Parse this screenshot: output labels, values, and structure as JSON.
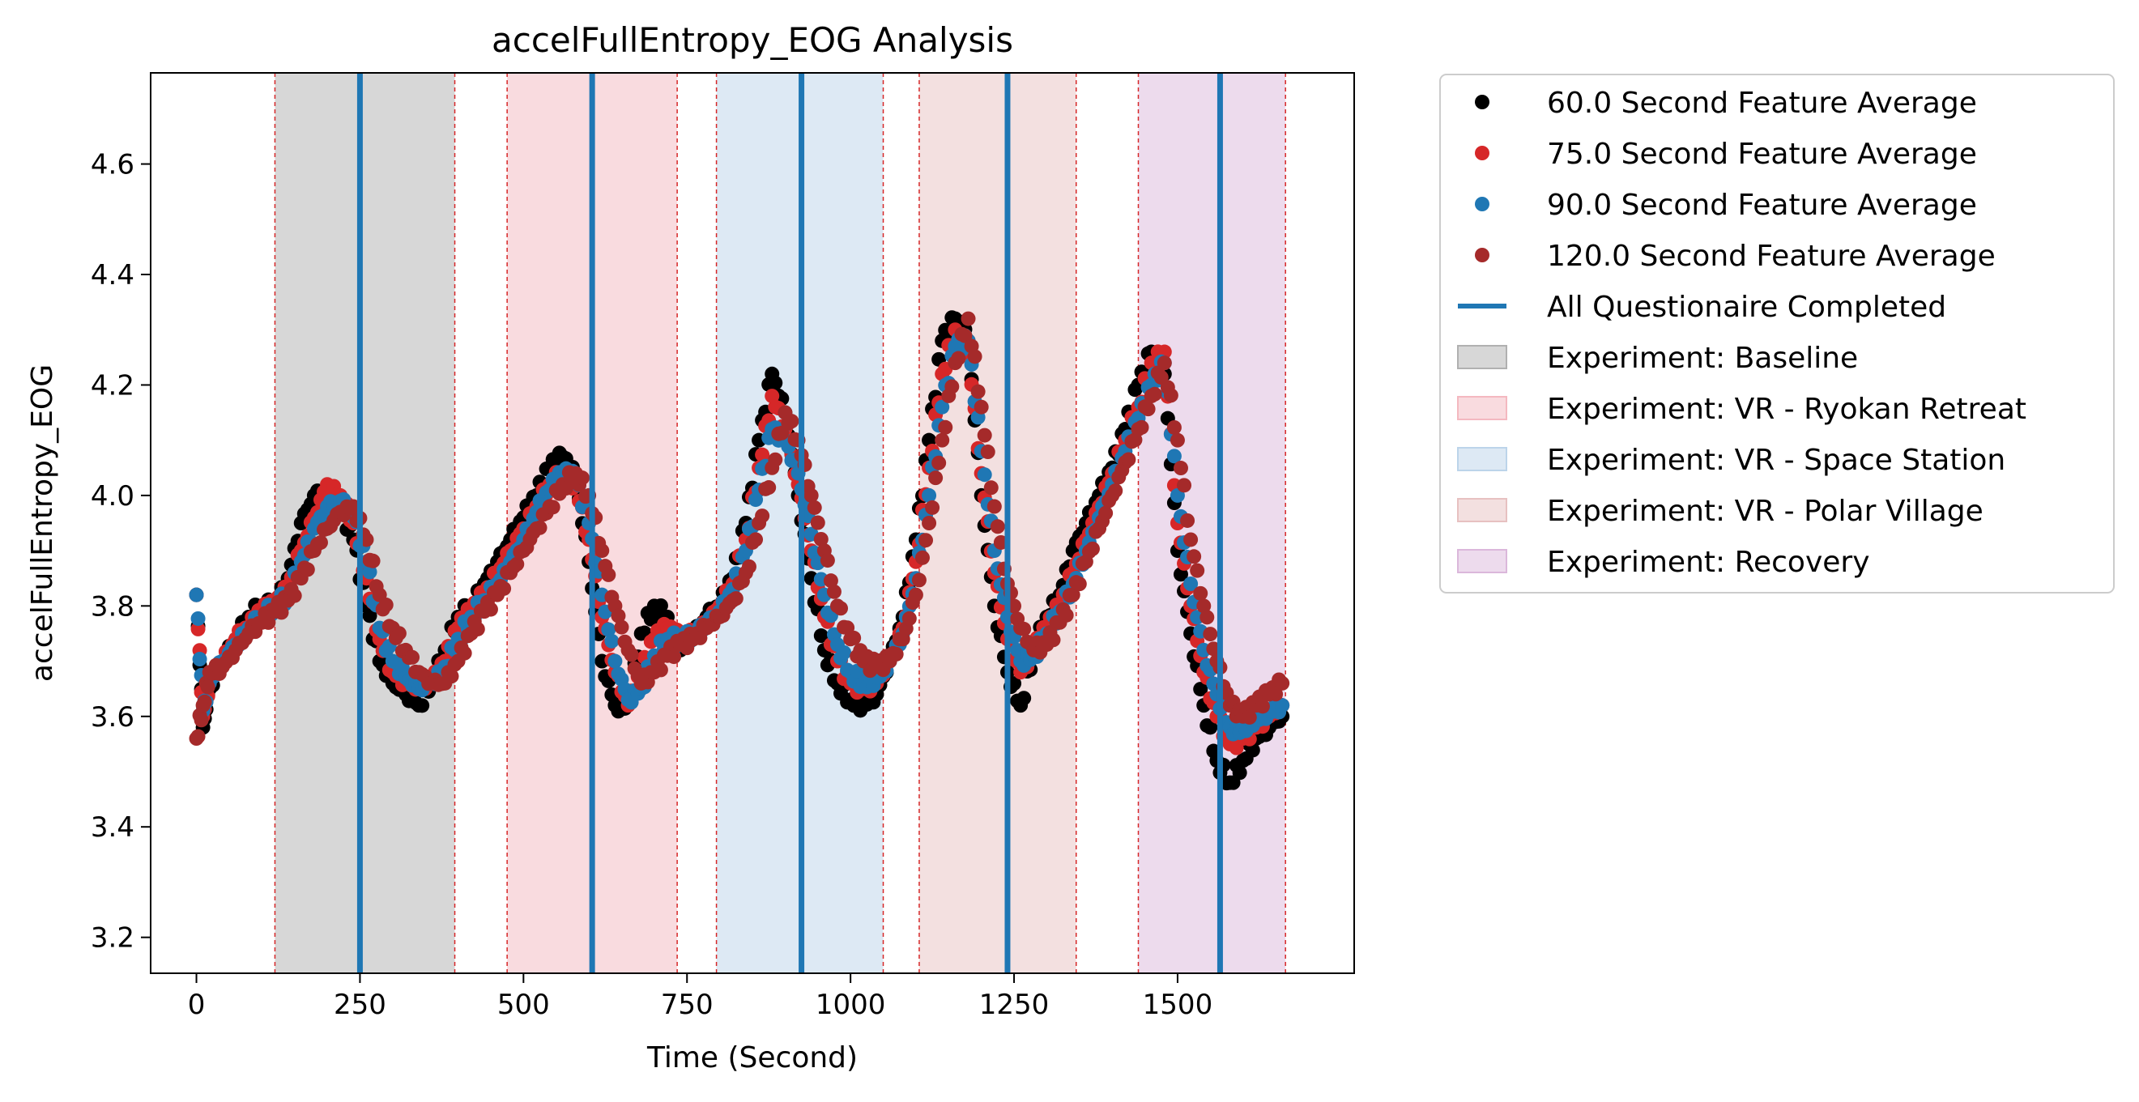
{
  "chart_data": {
    "type": "scatter",
    "title": "accelFullEntropy_EOG Analysis",
    "xlabel": "Time (Second)",
    "ylabel": "accelFullEntropy_EOG",
    "xlim": [
      -70,
      1770
    ],
    "ylim": [
      3.135,
      4.765
    ],
    "xticks": [
      0,
      250,
      500,
      750,
      1000,
      1250,
      1500
    ],
    "yticks": [
      3.2,
      3.4,
      3.6,
      3.8,
      4.0,
      4.2,
      4.4,
      4.6
    ],
    "legend_position": "outside-right-top",
    "grid": false,
    "series": [
      {
        "name": "60.0 Second Feature Average",
        "color": "#000000",
        "x": [
          0,
          10,
          20,
          40,
          60,
          80,
          100,
          120,
          140,
          160,
          180,
          200,
          220,
          240,
          260,
          280,
          300,
          320,
          340,
          360,
          380,
          400,
          420,
          440,
          460,
          480,
          500,
          520,
          540,
          560,
          580,
          600,
          620,
          640,
          660,
          680,
          700,
          720,
          740,
          760,
          780,
          800,
          820,
          840,
          860,
          880,
          900,
          920,
          940,
          960,
          980,
          1000,
          1020,
          1040,
          1060,
          1080,
          1100,
          1120,
          1140,
          1160,
          1180,
          1200,
          1220,
          1240,
          1260,
          1280,
          1300,
          1320,
          1340,
          1360,
          1380,
          1400,
          1420,
          1440,
          1460,
          1480,
          1500,
          1520,
          1540,
          1560,
          1580,
          1600,
          1620,
          1640,
          1660
        ],
        "y": [
          3.82,
          3.58,
          3.65,
          3.7,
          3.74,
          3.78,
          3.8,
          3.8,
          3.85,
          3.95,
          4.0,
          4.0,
          3.98,
          3.92,
          3.8,
          3.7,
          3.66,
          3.64,
          3.62,
          3.66,
          3.72,
          3.78,
          3.8,
          3.84,
          3.88,
          3.92,
          3.96,
          4.0,
          4.05,
          4.07,
          4.03,
          3.88,
          3.7,
          3.62,
          3.62,
          3.75,
          3.8,
          3.78,
          3.72,
          3.75,
          3.78,
          3.8,
          3.85,
          3.95,
          4.1,
          4.22,
          4.15,
          4.0,
          3.85,
          3.72,
          3.66,
          3.63,
          3.62,
          3.64,
          3.7,
          3.78,
          3.92,
          4.1,
          4.28,
          4.32,
          4.28,
          4.0,
          3.8,
          3.68,
          3.62,
          3.72,
          3.78,
          3.82,
          3.9,
          3.95,
          4.0,
          4.05,
          4.12,
          4.2,
          4.26,
          4.22,
          3.9,
          3.75,
          3.62,
          3.52,
          3.48,
          3.52,
          3.56,
          3.58,
          3.6
        ]
      },
      {
        "name": "75.0 Second Feature Average",
        "color": "#d62728",
        "x": [
          0,
          10,
          20,
          40,
          60,
          80,
          100,
          120,
          140,
          160,
          180,
          200,
          220,
          240,
          260,
          280,
          300,
          320,
          340,
          360,
          380,
          400,
          420,
          440,
          460,
          480,
          500,
          520,
          540,
          560,
          580,
          600,
          620,
          640,
          660,
          680,
          700,
          720,
          740,
          760,
          780,
          800,
          820,
          840,
          860,
          880,
          900,
          920,
          940,
          960,
          980,
          1000,
          1020,
          1040,
          1060,
          1080,
          1100,
          1120,
          1140,
          1160,
          1180,
          1200,
          1220,
          1240,
          1260,
          1280,
          1300,
          1320,
          1340,
          1360,
          1380,
          1400,
          1420,
          1440,
          1460,
          1480,
          1500,
          1520,
          1540,
          1560,
          1580,
          1600,
          1620,
          1640,
          1660
        ],
        "y": [
          3.82,
          3.6,
          3.66,
          3.7,
          3.74,
          3.76,
          3.79,
          3.8,
          3.83,
          3.9,
          3.96,
          4.02,
          4.0,
          3.95,
          3.85,
          3.74,
          3.68,
          3.66,
          3.65,
          3.66,
          3.7,
          3.76,
          3.79,
          3.82,
          3.86,
          3.9,
          3.94,
          3.98,
          4.02,
          4.04,
          4.02,
          3.92,
          3.78,
          3.68,
          3.62,
          3.68,
          3.74,
          3.76,
          3.74,
          3.75,
          3.77,
          3.8,
          3.84,
          3.92,
          4.05,
          4.18,
          4.12,
          4.02,
          3.9,
          3.78,
          3.7,
          3.66,
          3.65,
          3.66,
          3.7,
          3.76,
          3.88,
          4.05,
          4.22,
          4.3,
          4.26,
          4.04,
          3.86,
          3.74,
          3.68,
          3.72,
          3.76,
          3.8,
          3.86,
          3.92,
          3.98,
          4.04,
          4.1,
          4.16,
          4.24,
          4.26,
          3.95,
          3.8,
          3.68,
          3.6,
          3.55,
          3.56,
          3.58,
          3.6,
          3.62
        ]
      },
      {
        "name": "90.0 Second Feature Average",
        "color": "#1f77b4",
        "x": [
          0,
          10,
          20,
          40,
          60,
          80,
          100,
          120,
          140,
          160,
          180,
          200,
          220,
          240,
          260,
          280,
          300,
          320,
          340,
          360,
          380,
          400,
          420,
          440,
          460,
          480,
          500,
          520,
          540,
          560,
          580,
          600,
          620,
          640,
          660,
          680,
          700,
          720,
          740,
          760,
          780,
          800,
          820,
          840,
          860,
          880,
          900,
          920,
          940,
          960,
          980,
          1000,
          1020,
          1040,
          1060,
          1080,
          1100,
          1120,
          1140,
          1160,
          1180,
          1200,
          1220,
          1240,
          1260,
          1280,
          1300,
          1320,
          1340,
          1360,
          1380,
          1400,
          1420,
          1440,
          1460,
          1480,
          1500,
          1520,
          1540,
          1560,
          1580,
          1600,
          1620,
          1640,
          1660
        ],
        "y": [
          3.82,
          3.61,
          3.66,
          3.7,
          3.73,
          3.76,
          3.78,
          3.8,
          3.82,
          3.88,
          3.94,
          3.98,
          3.99,
          3.96,
          3.88,
          3.76,
          3.7,
          3.67,
          3.65,
          3.66,
          3.69,
          3.74,
          3.78,
          3.81,
          3.84,
          3.88,
          3.92,
          3.97,
          4.01,
          4.04,
          4.03,
          3.95,
          3.82,
          3.7,
          3.63,
          3.65,
          3.71,
          3.74,
          3.74,
          3.75,
          3.77,
          3.79,
          3.83,
          3.9,
          4.01,
          4.12,
          4.1,
          4.04,
          3.93,
          3.82,
          3.73,
          3.68,
          3.66,
          3.67,
          3.7,
          3.75,
          3.85,
          4.0,
          4.16,
          4.27,
          4.28,
          4.08,
          3.9,
          3.78,
          3.7,
          3.71,
          3.75,
          3.79,
          3.84,
          3.9,
          3.96,
          4.02,
          4.08,
          4.14,
          4.2,
          4.24,
          4.0,
          3.84,
          3.72,
          3.64,
          3.58,
          3.58,
          3.6,
          3.61,
          3.62
        ]
      },
      {
        "name": "120.0 Second Feature Average",
        "color": "#a52a2a",
        "x": [
          0,
          10,
          20,
          40,
          60,
          80,
          100,
          120,
          140,
          160,
          180,
          200,
          220,
          240,
          260,
          280,
          300,
          320,
          340,
          360,
          380,
          400,
          420,
          440,
          460,
          480,
          500,
          520,
          540,
          560,
          580,
          600,
          620,
          640,
          660,
          680,
          700,
          720,
          740,
          760,
          780,
          800,
          820,
          840,
          860,
          880,
          900,
          920,
          940,
          960,
          980,
          1000,
          1020,
          1040,
          1060,
          1080,
          1100,
          1120,
          1140,
          1160,
          1180,
          1200,
          1220,
          1240,
          1260,
          1280,
          1300,
          1320,
          1340,
          1360,
          1380,
          1400,
          1420,
          1440,
          1460,
          1480,
          1500,
          1520,
          1540,
          1560,
          1580,
          1600,
          1620,
          1640,
          1660
        ],
        "y": [
          3.56,
          3.62,
          3.68,
          3.69,
          3.72,
          3.75,
          3.77,
          3.79,
          3.81,
          3.85,
          3.9,
          3.94,
          3.97,
          3.98,
          3.92,
          3.82,
          3.76,
          3.72,
          3.68,
          3.66,
          3.66,
          3.7,
          3.75,
          3.79,
          3.82,
          3.86,
          3.9,
          3.94,
          3.98,
          4.02,
          4.04,
          4.0,
          3.9,
          3.8,
          3.72,
          3.66,
          3.68,
          3.71,
          3.73,
          3.74,
          3.76,
          3.78,
          3.81,
          3.86,
          3.95,
          4.05,
          4.15,
          4.1,
          4.0,
          3.9,
          3.8,
          3.74,
          3.7,
          3.69,
          3.7,
          3.74,
          3.82,
          3.95,
          4.1,
          4.24,
          4.32,
          4.16,
          3.98,
          3.84,
          3.76,
          3.72,
          3.73,
          3.77,
          3.82,
          3.88,
          3.94,
          4.0,
          4.06,
          4.12,
          4.18,
          4.24,
          4.1,
          3.92,
          3.8,
          3.7,
          3.62,
          3.6,
          3.62,
          3.64,
          3.66
        ]
      }
    ],
    "questionnaire_lines": {
      "name": "All Questionaire Completed",
      "color": "#1f77b4",
      "x": [
        250,
        605,
        925,
        1240,
        1565
      ]
    },
    "experiment_regions": [
      {
        "name": "Experiment: Baseline",
        "color": "#b0b0b0",
        "x0": 120,
        "x1": 395
      },
      {
        "name": "Experiment: VR - Ryokan Retreat",
        "color": "#f4b8c0",
        "x0": 475,
        "x1": 735
      },
      {
        "name": "Experiment: VR - Space Station",
        "color": "#bcd4ea",
        "x0": 795,
        "x1": 1050
      },
      {
        "name": "Experiment: VR - Polar Village",
        "color": "#e7c1c1",
        "x0": 1105,
        "x1": 1345
      },
      {
        "name": "Experiment: Recovery",
        "color": "#dbb7db",
        "x0": 1440,
        "x1": 1665
      }
    ]
  }
}
